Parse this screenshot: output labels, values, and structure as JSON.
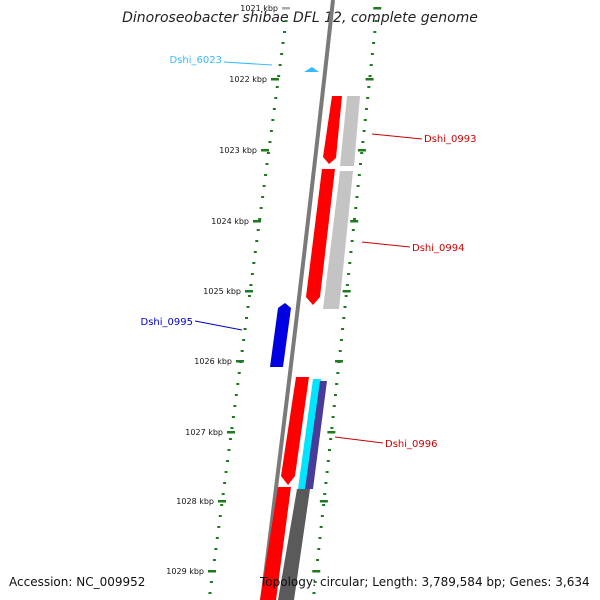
{
  "title": "Dinoroseobacter shibae DFL 12, complete genome",
  "footer": {
    "accession": "Accession: NC_009952",
    "stats": "Topology: circular; Length: 3,789,584 bp; Genes: 3,634"
  },
  "colors": {
    "backbone": "#7a7a7a",
    "ticks": "#1f7a1f",
    "forward_gene": "#ff0000",
    "reverse_gene": "#0000e0",
    "tRNA": "#33bbff",
    "gc_light": "#c4c4c4",
    "gc_dark": "#5a5a5a",
    "cyan_track": "#00e5ff",
    "purple_track": "#4b3b99"
  },
  "ticks": [
    {
      "label": "1021 kbp"
    },
    {
      "label": "1022 kbp"
    },
    {
      "label": "1023 kbp"
    },
    {
      "label": "1024 kbp"
    },
    {
      "label": "1025 kbp"
    },
    {
      "label": "1026 kbp"
    },
    {
      "label": "1027 kbp"
    },
    {
      "label": "1028 kbp"
    },
    {
      "label": "1029 kbp"
    }
  ],
  "gene_labels": [
    {
      "name": "Dshi_6023",
      "color": "#33bbff"
    },
    {
      "name": "Dshi_0993",
      "color": "#cc0000"
    },
    {
      "name": "Dshi_0994",
      "color": "#cc0000"
    },
    {
      "name": "Dshi_0995",
      "color": "#0000cc"
    },
    {
      "name": "Dshi_0996",
      "color": "#cc0000"
    }
  ]
}
